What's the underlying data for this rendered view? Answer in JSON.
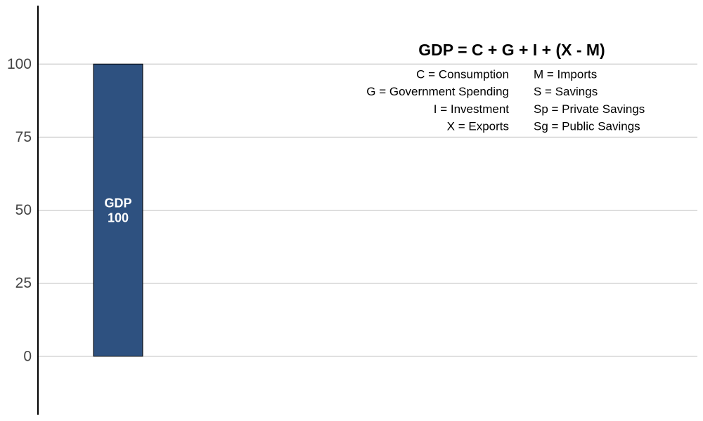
{
  "chart_data": {
    "type": "bar",
    "categories": [
      "GDP"
    ],
    "values": [
      100
    ],
    "color": "#2e5180",
    "ylim": [
      -20,
      120
    ],
    "yticks": [
      0,
      25,
      50,
      75,
      100
    ],
    "grid": true,
    "annotation_title": "GDP = C + G + I + (X - M)",
    "annotations_left": [
      "C = Consumption",
      "G = Government Spending",
      "I = Investment",
      "X = Exports"
    ],
    "annotations_right": [
      "M = Imports",
      "S = Savings",
      "Sp = Private Savings",
      "Sg = Public Savings"
    ]
  }
}
